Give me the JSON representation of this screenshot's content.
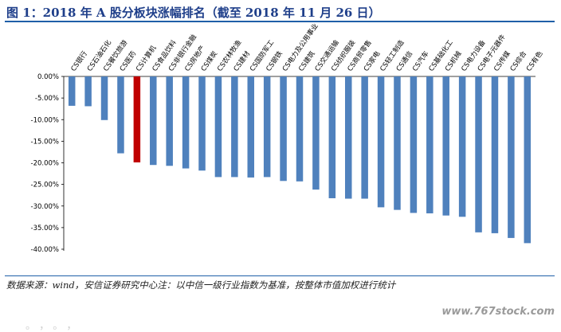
{
  "title": "图 1：2018 年 A 股分板块涨幅排名（截至 2018 年 11 月 26 日）",
  "source": "数据来源：wind，安信证券研究中心注：以中信一级行业指数为基准，按整体市值加权进行统计",
  "watermark": "www.767stock.com",
  "faded_text": "。 ，  。  ，",
  "colors": {
    "bar": "#4f81bd",
    "highlight": "#c00000",
    "title": "#1f3f8a",
    "rule": "#1f5fa8"
  },
  "chart_data": {
    "type": "bar",
    "title": "",
    "xlabel": "",
    "ylabel": "",
    "ylim": [
      -0.4,
      0.0
    ],
    "yticks": [
      "0.00%",
      "-5.00%",
      "-10.00%",
      "-15.00%",
      "-20.00%",
      "-25.00%",
      "-30.00%",
      "-35.00%",
      "-40.00%"
    ],
    "ytick_values": [
      0,
      -0.05,
      -0.1,
      -0.15,
      -0.2,
      -0.25,
      -0.3,
      -0.35,
      -0.4
    ],
    "grid": false,
    "highlight_index": 4,
    "categories": [
      "CS银行",
      "CS石油石化",
      "CS餐饮旅游",
      "CS医药",
      "CS计算机",
      "CS食品饮料",
      "CS非银行金融",
      "CS房地产",
      "CS煤炭",
      "CS农林牧渔",
      "CS建材",
      "CS国防军工",
      "CS钢铁",
      "CS电力及公用事业",
      "CS建筑",
      "CS交通运输",
      "CS纺织服装",
      "CS商贸零售",
      "CS家电",
      "CS轻工制造",
      "CS通信",
      "CS汽车",
      "CS基础化工",
      "CS机械",
      "CS电力设备",
      "CS电子元器件",
      "CS传媒",
      "CS综合",
      "CS有色"
    ],
    "values": [
      -0.068,
      -0.069,
      -0.101,
      -0.178,
      -0.199,
      -0.205,
      -0.207,
      -0.213,
      -0.218,
      -0.233,
      -0.233,
      -0.234,
      -0.233,
      -0.242,
      -0.243,
      -0.262,
      -0.282,
      -0.283,
      -0.283,
      -0.303,
      -0.309,
      -0.316,
      -0.317,
      -0.322,
      -0.325,
      -0.361,
      -0.363,
      -0.374,
      -0.386
    ]
  }
}
